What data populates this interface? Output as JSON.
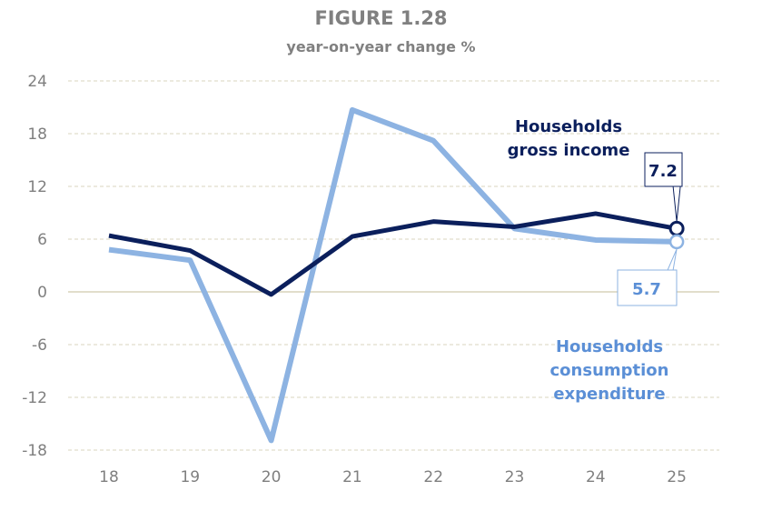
{
  "chart_data": {
    "type": "line",
    "title": "FIGURE 1.28",
    "subtitle": "year-on-year change %",
    "xlabel": "",
    "ylabel": "",
    "categories": [
      "18",
      "19",
      "20",
      "21",
      "22",
      "23",
      "24",
      "25"
    ],
    "ylim": [
      -18,
      24
    ],
    "yticks": [
      24,
      18,
      12,
      6,
      0,
      -6,
      -12,
      -18
    ],
    "grid": true,
    "legend": "inline labels",
    "series": [
      {
        "name": "Households gross income",
        "label_lines": [
          "Households",
          "gross income"
        ],
        "color": "#0b1f5c",
        "values": [
          6.4,
          4.7,
          -0.3,
          6.3,
          8.0,
          7.4,
          8.9,
          7.2
        ],
        "end_label": "7.2"
      },
      {
        "name": "Households consumption expenditure",
        "label_lines": [
          "Households",
          "consumption",
          "expenditure"
        ],
        "color": "#8db3e2",
        "label_color": "#5b8fd6",
        "values": [
          4.8,
          3.6,
          -16.9,
          20.7,
          17.2,
          7.2,
          5.9,
          5.7
        ],
        "end_label": "5.7"
      }
    ]
  }
}
